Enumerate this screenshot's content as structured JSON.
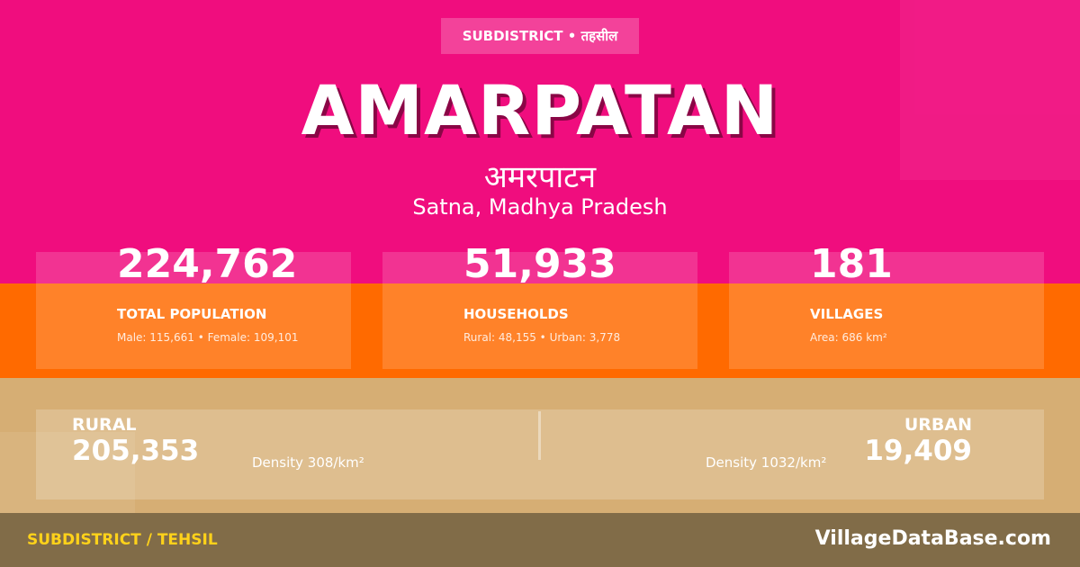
{
  "colors": {
    "top_band": "#f00d7e",
    "mid_band": "#ff6a00",
    "low_band": "#d6ae74",
    "footer_band": "#816c48",
    "footer_accent": "#ffd21a"
  },
  "badge": {
    "text": "SUBDISTRICT • तहसील"
  },
  "header": {
    "title": "AMARPATAN",
    "title_hindi": "अमरपाटन",
    "location": "Satna, Madhya Pradesh"
  },
  "stats": [
    {
      "value": "224,762",
      "label": "TOTAL POPULATION",
      "detail": "Male: 115,661 • Female: 109,101"
    },
    {
      "value": "51,933",
      "label": "HOUSEHOLDS",
      "detail": "Rural: 48,155 • Urban: 3,778"
    },
    {
      "value": "181",
      "label": "VILLAGES",
      "detail": "Area: 686 km²"
    }
  ],
  "split": {
    "rural": {
      "label": "RURAL",
      "value": "205,353",
      "density": "Density 308/km²"
    },
    "urban": {
      "label": "URBAN",
      "value": "19,409",
      "density": "Density 1032/km²"
    }
  },
  "footer": {
    "left": "SUBDISTRICT / TEHSIL",
    "right": "VillageDataBase.com"
  }
}
